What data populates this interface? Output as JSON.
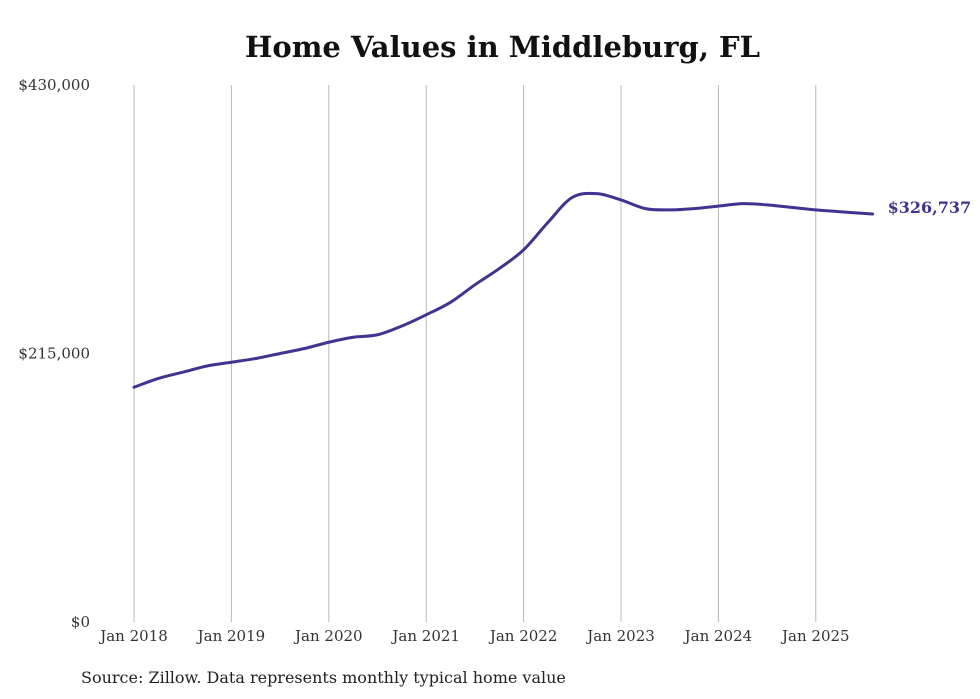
{
  "chart_data": {
    "type": "line",
    "title": "Home Values in Middleburg, FL",
    "x_ticks": [
      "Jan 2018",
      "Jan 2019",
      "Jan 2020",
      "Jan 2021",
      "Jan 2022",
      "Jan 2023",
      "Jan 2024",
      "Jan 2025"
    ],
    "y_ticks": [
      "$0",
      "$215,000",
      "$430,000"
    ],
    "ylim": [
      0,
      430000
    ],
    "grid": "vertical",
    "series": [
      {
        "color": "#3f3590",
        "end_label": "$326,737",
        "points": [
          [
            "2018-01",
            188000
          ],
          [
            "2018-04",
            195000
          ],
          [
            "2018-07",
            200000
          ],
          [
            "2018-10",
            205000
          ],
          [
            "2019-01",
            208000
          ],
          [
            "2019-04",
            211000
          ],
          [
            "2019-07",
            215000
          ],
          [
            "2019-10",
            219000
          ],
          [
            "2020-01",
            224000
          ],
          [
            "2020-04",
            228000
          ],
          [
            "2020-07",
            230000
          ],
          [
            "2020-10",
            237000
          ],
          [
            "2021-01",
            246000
          ],
          [
            "2021-04",
            256000
          ],
          [
            "2021-07",
            270000
          ],
          [
            "2021-10",
            283000
          ],
          [
            "2022-01",
            298000
          ],
          [
            "2022-04",
            320000
          ],
          [
            "2022-07",
            340000
          ],
          [
            "2022-10",
            343000
          ],
          [
            "2023-01",
            338000
          ],
          [
            "2023-04",
            331000
          ],
          [
            "2023-07",
            330000
          ],
          [
            "2023-10",
            331000
          ],
          [
            "2024-01",
            333000
          ],
          [
            "2024-04",
            335000
          ],
          [
            "2024-07",
            334000
          ],
          [
            "2024-10",
            332000
          ],
          [
            "2025-01",
            330000
          ],
          [
            "2025-04",
            328500
          ],
          [
            "2025-08",
            326737
          ]
        ]
      }
    ]
  },
  "source_text": "Source: Zillow. Data represents monthly typical home value"
}
